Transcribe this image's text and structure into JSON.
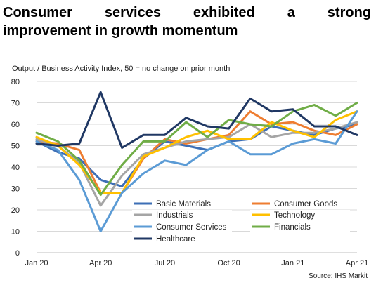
{
  "headline": {
    "line1_words": [
      "Consumer",
      "services",
      "exhibited",
      "a",
      "strong"
    ],
    "line2": "improvement in growth momentum"
  },
  "chart_data": {
    "type": "line",
    "subtitle": "Output  / Business Activity Index, 50 = no change on prior month",
    "source": "Source: IHS Markit",
    "ylim": [
      0,
      80
    ],
    "yticks": [
      0,
      10,
      20,
      30,
      40,
      50,
      60,
      70,
      80
    ],
    "xtick_labels": [
      {
        "index": 0,
        "label": "Jan 20"
      },
      {
        "index": 3,
        "label": "Apr 20"
      },
      {
        "index": 6,
        "label": "Jul 20"
      },
      {
        "index": 9,
        "label": "Oct 20"
      },
      {
        "index": 12,
        "label": "Jan 21"
      },
      {
        "index": 15,
        "label": "Apr 21"
      }
    ],
    "x": [
      "Jan 20",
      "Feb 20",
      "Mar 20",
      "Apr 20",
      "May 20",
      "Jun 20",
      "Jul 20",
      "Aug 20",
      "Sep 20",
      "Oct 20",
      "Nov 20",
      "Dec 20",
      "Jan 21",
      "Feb 21",
      "Mar 21",
      "Apr 21"
    ],
    "grid": "horizontal",
    "legend_position": "lower-center",
    "series": [
      {
        "name": "Basic Materials",
        "color": "#3d6fb6",
        "values": [
          52,
          47,
          44,
          34,
          31,
          44,
          52,
          50,
          48,
          52,
          53,
          59,
          57,
          55,
          58,
          60
        ]
      },
      {
        "name": "Consumer Goods",
        "color": "#ee7d31",
        "values": [
          52,
          51,
          48,
          28,
          28,
          44,
          53,
          51,
          53,
          55,
          66,
          60,
          61,
          57,
          55,
          60
        ]
      },
      {
        "name": "Industrials",
        "color": "#a5a5a5",
        "values": [
          53,
          50,
          42,
          22,
          36,
          46,
          49,
          52,
          53,
          54,
          60,
          54,
          56,
          56,
          58,
          61
        ]
      },
      {
        "name": "Technology",
        "color": "#ffc000",
        "values": [
          54,
          50,
          41,
          28,
          28,
          45,
          49,
          54,
          57,
          53,
          53,
          61,
          57,
          54,
          62,
          66
        ]
      },
      {
        "name": "Consumer Services",
        "color": "#5b9bd5",
        "values": [
          52,
          48,
          34,
          10,
          28,
          37,
          43,
          41,
          48,
          52,
          46,
          46,
          51,
          53,
          51,
          66
        ]
      },
      {
        "name": "Financials",
        "color": "#70ad47",
        "values": [
          56,
          52,
          43,
          27,
          41,
          52,
          52,
          61,
          54,
          62,
          60,
          59,
          66,
          69,
          64,
          70
        ]
      },
      {
        "name": "Healthcare",
        "color": "#203864",
        "values": [
          51,
          50,
          51,
          75,
          49,
          55,
          55,
          63,
          59,
          58,
          72,
          66,
          67,
          59,
          59,
          55
        ]
      }
    ]
  }
}
